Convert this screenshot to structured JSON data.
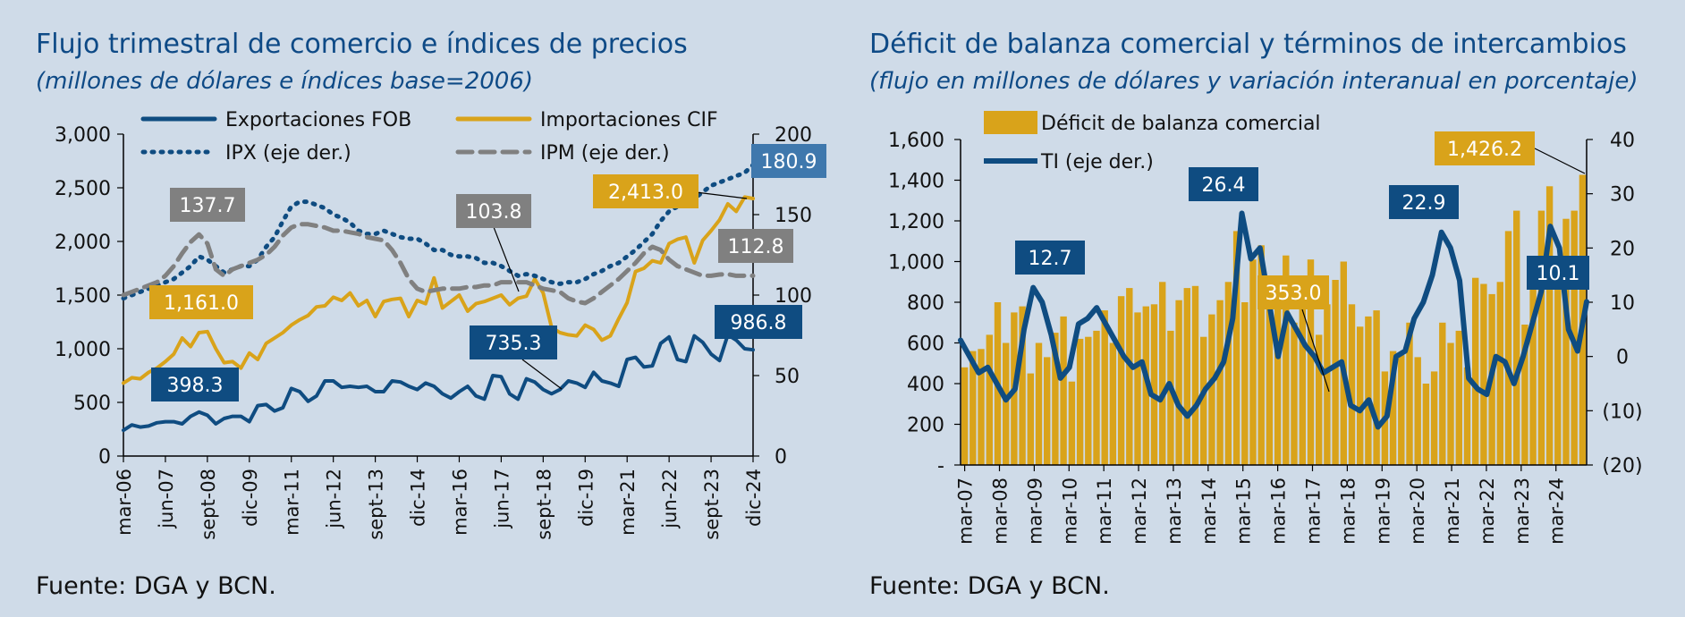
{
  "colors": {
    "background": "#cfdbe8",
    "navy": "#0f4c81",
    "gold": "#d9a31a",
    "gray": "#808080",
    "box_blue": "#3f78ad"
  },
  "left": {
    "title": "Flujo trimestral de comercio e índices de precios",
    "subtitle": "(millones de dólares e índices base=2006)",
    "source": "Fuente: DGA y BCN."
  },
  "right": {
    "title": "Déficit de balanza comercial y términos de intercambios",
    "subtitle": "(flujo en millones de dólares y variación interanual en porcentaje)",
    "source": "Fuente: DGA y BCN."
  },
  "chart_data": [
    {
      "type": "line",
      "title": "Flujo trimestral de comercio e índices de precios",
      "subtitle": "(millones de dólares e índices base=2006)",
      "x_tick_labels": [
        "mar-06",
        "jun-07",
        "sept-08",
        "dic-09",
        "mar-11",
        "jun-12",
        "sept-13",
        "dic-14",
        "mar-16",
        "jun-17",
        "sept-18",
        "dic-19",
        "mar-21",
        "jun-22",
        "sept-23",
        "dic-24"
      ],
      "y_left": {
        "range": [
          0,
          3000
        ],
        "ticks": [
          "0",
          "500",
          "1,000",
          "1,500",
          "2,000",
          "2,500",
          "3,000"
        ]
      },
      "y_right": {
        "range": [
          0,
          200
        ],
        "ticks": [
          "0",
          "50",
          "100",
          "150",
          "200"
        ]
      },
      "legend_position": "top",
      "series": [
        {
          "name": "Exportaciones FOB",
          "axis": "left",
          "color": "#0f4c81",
          "style": "solid",
          "values": [
            240,
            290,
            270,
            280,
            310,
            320,
            320,
            300,
            370,
            410,
            380,
            300,
            350,
            370,
            370,
            320,
            470,
            480,
            420,
            450,
            630,
            600,
            510,
            560,
            700,
            700,
            640,
            650,
            640,
            650,
            600,
            600,
            700,
            690,
            650,
            620,
            680,
            650,
            580,
            540,
            600,
            650,
            560,
            530,
            750,
            740,
            580,
            530,
            720,
            690,
            620,
            580,
            620,
            700,
            680,
            640,
            780,
            700,
            680,
            650,
            900,
            920,
            830,
            840,
            1050,
            1110,
            900,
            880,
            1120,
            1060,
            950,
            890,
            1130,
            1080,
            1000,
            990
          ],
          "labels": [
            {
              "text": "398.3"
            },
            {
              "text": "735.3"
            },
            {
              "text": "986.8"
            }
          ]
        },
        {
          "name": "Importaciones CIF",
          "axis": "left",
          "color": "#d9a31a",
          "style": "solid",
          "values": [
            680,
            730,
            720,
            780,
            820,
            880,
            950,
            1100,
            1020,
            1150,
            1160,
            1000,
            870,
            880,
            820,
            960,
            900,
            1050,
            1100,
            1150,
            1220,
            1270,
            1310,
            1390,
            1400,
            1480,
            1450,
            1520,
            1400,
            1450,
            1300,
            1440,
            1460,
            1470,
            1300,
            1450,
            1420,
            1660,
            1380,
            1440,
            1500,
            1350,
            1420,
            1440,
            1470,
            1500,
            1410,
            1470,
            1490,
            1650,
            1520,
            1200,
            1150,
            1130,
            1120,
            1220,
            1180,
            1080,
            1120,
            1280,
            1430,
            1720,
            1750,
            1820,
            1800,
            1980,
            2020,
            2040,
            1800,
            2010,
            2100,
            2200,
            2350,
            2280,
            2413,
            2400
          ]
        },
        {
          "name": "IPX (eje der.)",
          "axis": "right",
          "color": "#0f4c81",
          "style": "dotted",
          "values": [
            98,
            100,
            102,
            104,
            106,
            108,
            110,
            114,
            118,
            124,
            122,
            118,
            114,
            116,
            118,
            118,
            122,
            130,
            136,
            146,
            155,
            158,
            158,
            156,
            154,
            150,
            148,
            145,
            140,
            138,
            138,
            140,
            138,
            136,
            135,
            135,
            132,
            128,
            128,
            125,
            124,
            124,
            123,
            120,
            120,
            118,
            115,
            112,
            113,
            112,
            110,
            108,
            107,
            108,
            108,
            110,
            113,
            115,
            118,
            120,
            124,
            128,
            133,
            138,
            146,
            152,
            155,
            158,
            160,
            164,
            168,
            170,
            172,
            174,
            176,
            180.9
          ]
        },
        {
          "name": "IPM (eje der.)",
          "axis": "right",
          "color": "#808080",
          "style": "dashed",
          "values": [
            100,
            102,
            104,
            106,
            108,
            112,
            118,
            126,
            133,
            137.7,
            132,
            116,
            112,
            116,
            118,
            120,
            122,
            125,
            130,
            137,
            142,
            144,
            144,
            143,
            142,
            140,
            140,
            139,
            138,
            136,
            135,
            134,
            128,
            120,
            110,
            104,
            102,
            103,
            104,
            104,
            104,
            105,
            105,
            106,
            106,
            108,
            108,
            108,
            108,
            106,
            104,
            103,
            102,
            98,
            96,
            95,
            98,
            102,
            106,
            110,
            115,
            120,
            126,
            130,
            128,
            122,
            118,
            116,
            114,
            112,
            112,
            112.8,
            113,
            112,
            112,
            112
          ]
        }
      ],
      "callouts": [
        "137.7",
        "1,161.0",
        "103.8",
        "2,413.0",
        "180.9",
        "112.8",
        "986.8",
        "735.3",
        "398.3"
      ]
    },
    {
      "type": "bar",
      "title": "Déficit de balanza comercial y términos de intercambios",
      "subtitle": "(flujo en millones de dólares y variación interanual en porcentaje)",
      "x_tick_labels": [
        "mar-07",
        "mar-08",
        "mar-09",
        "mar-10",
        "mar-11",
        "mar-12",
        "mar-13",
        "mar-14",
        "mar-15",
        "mar-16",
        "mar-17",
        "mar-18",
        "mar-19",
        "mar-20",
        "mar-21",
        "mar-22",
        "mar-23",
        "mar-24"
      ],
      "y_left": {
        "range": [
          0,
          1600
        ],
        "ticks": [
          "-",
          "200",
          "400",
          "600",
          "800",
          "1,000",
          "1,200",
          "1,400",
          "1,600"
        ]
      },
      "y_right": {
        "range": [
          -20,
          40
        ],
        "ticks": [
          "(20)",
          "(10)",
          "0",
          "10",
          "20",
          "30",
          "40"
        ]
      },
      "legend_position": "top-left",
      "series": [
        {
          "name": "Déficit de balanza comercial",
          "axis": "left",
          "color": "#d9a31a",
          "type": "bar",
          "values": [
            480,
            560,
            570,
            640,
            800,
            600,
            750,
            780,
            450,
            600,
            530,
            650,
            730,
            410,
            620,
            630,
            660,
            760,
            600,
            830,
            870,
            750,
            780,
            790,
            900,
            660,
            810,
            870,
            880,
            630,
            740,
            810,
            900,
            1150,
            800,
            1010,
            1080,
            800,
            820,
            1030,
            700,
            840,
            1010,
            640,
            790,
            910,
            1000,
            790,
            680,
            730,
            760,
            460,
            560,
            540,
            700,
            530,
            400,
            460,
            700,
            600,
            660,
            480,
            920,
            890,
            840,
            900,
            1150,
            1250,
            690,
            900,
            1250,
            1370,
            980,
            1210,
            1250,
            1426.2
          ]
        },
        {
          "name": "TI (eje der.)",
          "axis": "right",
          "color": "#0f4c81",
          "type": "line",
          "values": [
            3,
            0,
            -3,
            -2,
            -5,
            -8,
            -6,
            5,
            12.7,
            10,
            4,
            -4,
            -2,
            6,
            7,
            9,
            6,
            3,
            0,
            -2,
            -1,
            -7,
            -8,
            -5,
            -9,
            -11,
            -9,
            -6,
            -4,
            -1,
            7,
            26.4,
            18,
            20,
            10,
            0,
            8,
            5,
            2,
            0,
            -3,
            -2,
            -1,
            -9,
            -10,
            -8,
            -13,
            -11,
            0,
            1,
            7,
            10,
            15,
            22.9,
            20,
            14,
            -4,
            -6,
            -7,
            0,
            -1,
            -5,
            0,
            6,
            12,
            24,
            20,
            5,
            1,
            10.1
          ]
        }
      ],
      "callouts": [
        "12.7",
        "26.4",
        "22.9",
        "353.0",
        "1,426.2",
        "10.1"
      ]
    }
  ]
}
